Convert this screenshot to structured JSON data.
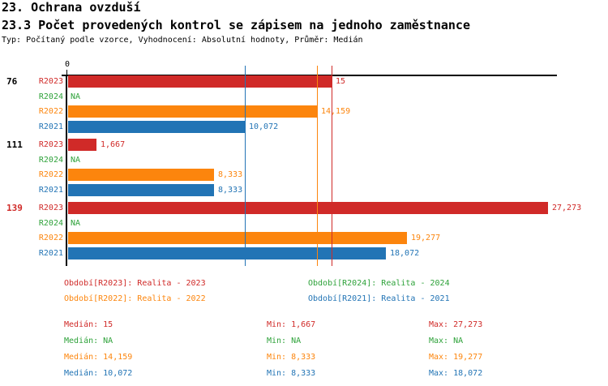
{
  "header": {
    "title_line1": "23. Ochrana ovzduší",
    "title_line2": "23.3 Počet provedených kontrol se zápisem na jednoho zaměstnance",
    "meta": "Typ: Počítaný podle vzorce, Vyhodnocení: Absolutní hodnoty, Průměr: Medián"
  },
  "colors": {
    "R2023": "#d02a28",
    "R2024": "#2ea23a",
    "R2022": "#fc850d",
    "R2021": "#2274b5",
    "axis": "#000000",
    "group_label_default": "#000000",
    "group_label_highlight": "#d02a28"
  },
  "chart_data": {
    "type": "bar",
    "orientation": "horizontal",
    "title": "",
    "xlabel": "",
    "ylabel": "",
    "x_axis": {
      "zero_label": "0",
      "xlim": [
        0,
        28
      ],
      "grid": false
    },
    "series_order": [
      "R2023",
      "R2024",
      "R2022",
      "R2021"
    ],
    "groups": [
      {
        "label": "76",
        "label_color": "#000000",
        "bars": [
          {
            "series": "R2023",
            "value": 15,
            "display": "15"
          },
          {
            "series": "R2024",
            "value": null,
            "display": "NA"
          },
          {
            "series": "R2022",
            "value": 14.159,
            "display": "14,159"
          },
          {
            "series": "R2021",
            "value": 10.072,
            "display": "10,072"
          }
        ]
      },
      {
        "label": "111",
        "label_color": "#000000",
        "bars": [
          {
            "series": "R2023",
            "value": 1.667,
            "display": "1,667"
          },
          {
            "series": "R2024",
            "value": null,
            "display": "NA"
          },
          {
            "series": "R2022",
            "value": 8.333,
            "display": "8,333"
          },
          {
            "series": "R2021",
            "value": 8.333,
            "display": "8,333"
          }
        ]
      },
      {
        "label": "139",
        "label_color": "#d02a28",
        "bars": [
          {
            "series": "R2023",
            "value": 27.273,
            "display": "27,273"
          },
          {
            "series": "R2024",
            "value": null,
            "display": "NA"
          },
          {
            "series": "R2022",
            "value": 19.277,
            "display": "19,277"
          },
          {
            "series": "R2021",
            "value": 18.072,
            "display": "18,072"
          }
        ]
      }
    ],
    "reference_lines": [
      {
        "series": "R2021",
        "value": 10.072
      },
      {
        "series": "R2022",
        "value": 14.159
      },
      {
        "series": "R2023",
        "value": 15
      }
    ]
  },
  "legend": {
    "items": [
      {
        "series": "R2023",
        "text": "Období[R2023]: Realita - 2023",
        "col": 0,
        "row": 0
      },
      {
        "series": "R2024",
        "text": "Období[R2024]: Realita - 2024",
        "col": 1,
        "row": 0
      },
      {
        "series": "R2022",
        "text": "Období[R2022]: Realita - 2022",
        "col": 0,
        "row": 1
      },
      {
        "series": "R2021",
        "text": "Období[R2021]: Realita - 2021",
        "col": 1,
        "row": 1
      }
    ]
  },
  "stats": {
    "rows": [
      {
        "series": "R2023",
        "median": "Medián: 15",
        "min": "Min: 1,667",
        "max": "Max: 27,273"
      },
      {
        "series": "R2024",
        "median": "Medián: NA",
        "min": "Min: NA",
        "max": "Max: NA"
      },
      {
        "series": "R2022",
        "median": "Medián: 14,159",
        "min": "Min: 8,333",
        "max": "Max: 19,277"
      },
      {
        "series": "R2021",
        "median": "Medián: 10,072",
        "min": "Min: 8,333",
        "max": "Max: 18,072"
      }
    ]
  }
}
